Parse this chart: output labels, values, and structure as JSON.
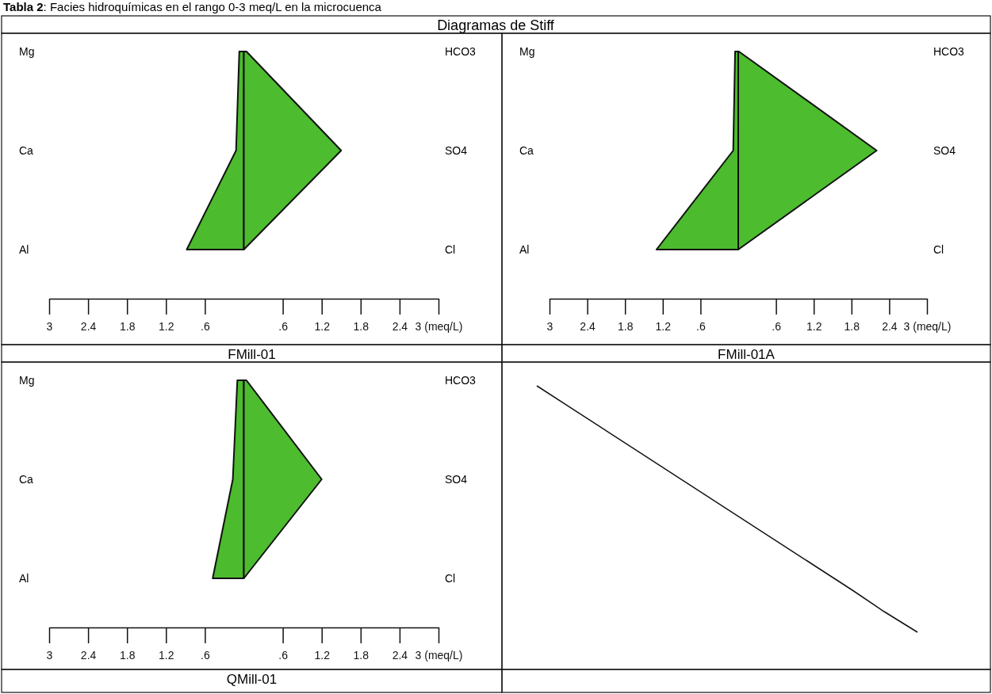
{
  "chart_data": [
    {
      "type": "area",
      "orientation": "horizontal",
      "title": "Tabla 2: Facies hidroquímicas en el rango 0-3 meq/L en la microcuenca",
      "subtitle": "Diagramas de Stiff",
      "categories": [
        "Mg",
        "Ca",
        "Al"
      ],
      "y2_categories": [
        "HCO3",
        "SO4",
        "Cl"
      ],
      "xlabel": "FMill-01",
      "xlim": [
        -3,
        3
      ],
      "xticks": [
        {
          "value": -3,
          "label": "3"
        },
        {
          "value": -2.4,
          "label": "2.4"
        },
        {
          "value": -1.8,
          "label": "1.8"
        },
        {
          "value": -1.2,
          "label": "1.2"
        },
        {
          "value": -0.6,
          "label": ".6"
        },
        {
          "value": 0.6,
          "label": ".6"
        },
        {
          "value": 1.2,
          "label": "1.2"
        },
        {
          "value": 1.8,
          "label": "1.8"
        },
        {
          "value": 2.4,
          "label": "2.4"
        },
        {
          "value": 3,
          "label": "3 (meq/L)"
        }
      ],
      "series": [
        {
          "color": "#4cbb2e",
          "values": [
            -0.07,
            -0.12,
            -0.88
          ]
        },
        {
          "color": "#4dbc2f",
          "values": [
            0.04,
            1.5,
            0
          ]
        }
      ]
    },
    {
      "type": "area",
      "orientation": "horizontal",
      "categories": [
        "Mg",
        "Ca",
        "Al"
      ],
      "y2_categories": [
        "HCO3",
        "SO4",
        "Cl"
      ],
      "xlabel": "FMill-01A",
      "xlim": [
        -3,
        3
      ],
      "xticks": [
        {
          "value": -3,
          "label": "3"
        },
        {
          "value": -2.4,
          "label": "2.4"
        },
        {
          "value": -1.8,
          "label": "1.8"
        },
        {
          "value": -1.2,
          "label": "1.2"
        },
        {
          "value": -0.6,
          "label": ".6"
        },
        {
          "value": 0.6,
          "label": ".6"
        },
        {
          "value": 1.2,
          "label": "1.2"
        },
        {
          "value": 1.8,
          "label": "1.8"
        },
        {
          "value": 2.4,
          "label": "2.4"
        },
        {
          "value": 3,
          "label": "3 (meq/L)"
        }
      ],
      "series": [
        {
          "color": "#4cbb2e",
          "values": [
            -0.05,
            -0.08,
            -1.3
          ]
        },
        {
          "color": "#4dbc2f",
          "values": [
            0.01,
            2.2,
            0
          ]
        }
      ]
    },
    {
      "type": "area",
      "orientation": "horizontal",
      "categories": [
        "Mg",
        "Ca",
        "Al"
      ],
      "y2_categories": [
        "HCO3",
        "SO4",
        "Cl"
      ],
      "xlabel": "QMill-01",
      "xlim": [
        -3,
        3
      ],
      "xticks": [
        {
          "value": -3,
          "label": "3"
        },
        {
          "value": -2.4,
          "label": "2.4"
        },
        {
          "value": -1.8,
          "label": "1.8"
        },
        {
          "value": -1.2,
          "label": "1.2"
        },
        {
          "value": -0.6,
          "label": ".6"
        },
        {
          "value": 0.6,
          "label": ".6"
        },
        {
          "value": 1.2,
          "label": "1.2"
        },
        {
          "value": 1.8,
          "label": "1.8"
        },
        {
          "value": 2.4,
          "label": "2.4"
        },
        {
          "value": 3,
          "label": "3 (meq/L)"
        }
      ],
      "series": [
        {
          "color": "#4cbb2e",
          "values": [
            -0.1,
            -0.17,
            -0.48
          ]
        },
        {
          "color": "#4dbc2f",
          "values": [
            0.04,
            1.2,
            0
          ]
        }
      ]
    }
  ]
}
